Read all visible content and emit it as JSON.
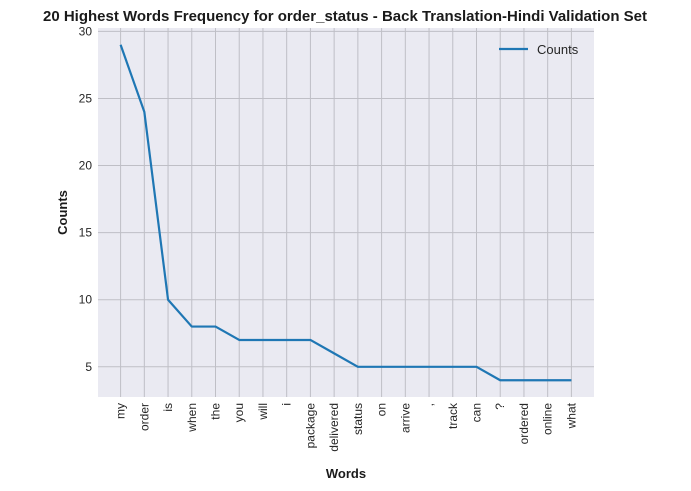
{
  "chart_data": {
    "type": "line",
    "title": "20 Highest Words Frequency for order_status - Back Translation-Hindi Validation Set",
    "xlabel": "Words",
    "ylabel": "Counts",
    "categories": [
      "my",
      "order",
      "is",
      "when",
      "the",
      "you",
      "will",
      "i",
      "package",
      "delivered",
      "status",
      "on",
      "arrive",
      ",",
      "track",
      "can",
      "?",
      "ordered",
      "online",
      "what"
    ],
    "series": [
      {
        "name": "Counts",
        "values": [
          29,
          24,
          10,
          8,
          8,
          7,
          7,
          7,
          7,
          6,
          5,
          5,
          5,
          5,
          5,
          5,
          4,
          4,
          4,
          4
        ]
      }
    ],
    "ylim": [
      2.75,
      30.25
    ],
    "yticks": [
      5,
      10,
      15,
      20,
      25,
      30
    ],
    "grid": true,
    "legend_position": "top-right",
    "colors": {
      "line": "#1f77b4",
      "plot_bg": "#eaeaf2",
      "grid": "#bfbfc6"
    }
  }
}
